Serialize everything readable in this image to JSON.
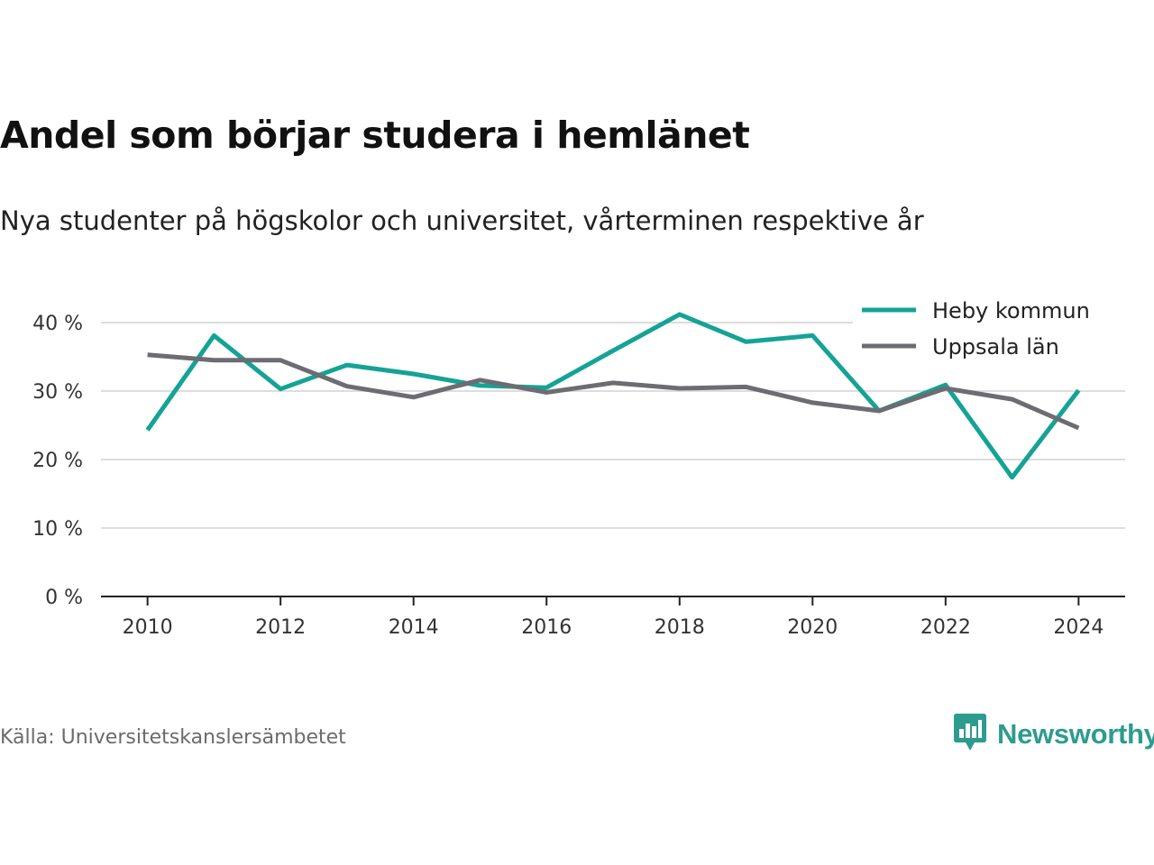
{
  "header": {
    "title": "Andel som börjar studera i hemlänet",
    "subtitle": "Nya studenter på högskolor och universitet, vårterminen respektive år"
  },
  "footer": {
    "source": "Källa: Universitetskanslersämbetet",
    "brand": "Newsworthy",
    "brand_icon": "bar-chart-speech-bubble-icon",
    "brand_color": "#2d9c8e"
  },
  "chart_data": {
    "type": "line",
    "title": "Andel som börjar studera i hemlänet",
    "subtitle": "Nya studenter på högskolor och universitet, vårterminen respektive år",
    "xlabel": "",
    "ylabel": "",
    "x": [
      2010,
      2011,
      2012,
      2013,
      2014,
      2015,
      2016,
      2017,
      2018,
      2019,
      2020,
      2021,
      2022,
      2023,
      2024
    ],
    "x_ticks": [
      "2010",
      "2012",
      "2014",
      "2016",
      "2018",
      "2020",
      "2022",
      "2024"
    ],
    "xlim": [
      2009.3,
      2024.7
    ],
    "y_ticks": [
      {
        "value": 0,
        "label": "0 %"
      },
      {
        "value": 10,
        "label": "10 %"
      },
      {
        "value": 20,
        "label": "20 %"
      },
      {
        "value": 30,
        "label": "30 %"
      },
      {
        "value": 40,
        "label": "40 %"
      }
    ],
    "ylim": [
      0,
      40
    ],
    "grid": true,
    "legend_position": "top-right",
    "series": [
      {
        "name": "Heby kommun",
        "color": "#14a396",
        "values": [
          24.3,
          38.1,
          30.3,
          33.8,
          32.5,
          30.8,
          30.5,
          35.9,
          41.2,
          37.2,
          38.1,
          27.1,
          30.9,
          17.4,
          30.1
        ]
      },
      {
        "name": "Uppsala län",
        "color": "#6d6c72",
        "values": [
          35.3,
          34.5,
          34.5,
          30.7,
          29.1,
          31.6,
          29.8,
          31.2,
          30.4,
          30.6,
          28.3,
          27.1,
          30.4,
          28.8,
          24.6
        ]
      }
    ]
  }
}
